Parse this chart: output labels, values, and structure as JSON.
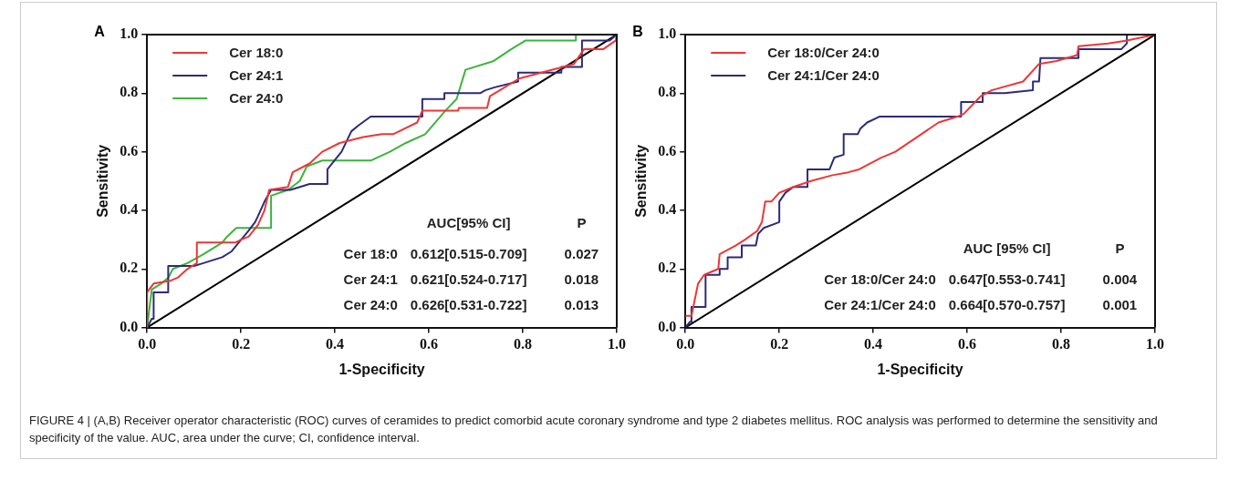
{
  "chart_data": [
    {
      "type": "line",
      "title": "A",
      "xlabel": "1-Specificity",
      "ylabel": "Sensitivity",
      "xlim": [
        0,
        1
      ],
      "ylim": [
        0,
        1
      ],
      "xticks": [
        {
          "value": 0,
          "label": "0.0"
        },
        {
          "value": 0.2,
          "label": "0.2"
        },
        {
          "value": 0.4,
          "label": "0.4"
        },
        {
          "value": 0.6,
          "label": "0.6"
        },
        {
          "value": 0.8,
          "label": "0.8"
        },
        {
          "value": 1,
          "label": "1.0"
        }
      ],
      "yticks": [
        {
          "value": 0,
          "label": "0.0"
        },
        {
          "value": 0.2,
          "label": "0.2"
        },
        {
          "value": 0.4,
          "label": "0.4"
        },
        {
          "value": 0.6,
          "label": "0.6"
        },
        {
          "value": 0.8,
          "label": "0.8"
        },
        {
          "value": 1,
          "label": "1.0"
        }
      ],
      "legend": "top left",
      "grid": false,
      "marker": "none",
      "line_style": "solid",
      "annotations": [
        "AUC[95% CI]",
        "P",
        "Cer 18:0",
        "0.612[0.515-0.709]",
        "0.027",
        "Cer 24:1",
        "0.621[0.524-0.717]",
        "0.018",
        "Cer 24:0",
        "0.626[0.531-0.722]",
        "0.013"
      ],
      "series": [
        {
          "name": "Cer 18:0",
          "color": "#f03535",
          "x": [
            0,
            0,
            0.014,
            0.05,
            0.065,
            0.086,
            0.106,
            0.106,
            0.188,
            0.2,
            0.216,
            0.236,
            0.25,
            0.26,
            0.3,
            0.31,
            0.346,
            0.373,
            0.41,
            0.46,
            0.5,
            0.524,
            0.575,
            0.586,
            0.662,
            0.664,
            0.724,
            0.73,
            0.751,
            0.792,
            0.909,
            0.93,
            0.971,
            0.998,
            1
          ],
          "values": [
            0,
            0.12,
            0.15,
            0.16,
            0.17,
            0.2,
            0.22,
            0.29,
            0.29,
            0.3,
            0.31,
            0.35,
            0.4,
            0.47,
            0.48,
            0.53,
            0.56,
            0.6,
            0.63,
            0.65,
            0.66,
            0.66,
            0.7,
            0.74,
            0.74,
            0.75,
            0.75,
            0.79,
            0.81,
            0.85,
            0.9,
            0.95,
            0.95,
            0.98,
            1
          ]
        },
        {
          "name": "Cer 24:1",
          "color": "#2b2b78",
          "x": [
            0,
            0.01,
            0.014,
            0.014,
            0.045,
            0.045,
            0.1,
            0.12,
            0.16,
            0.18,
            0.195,
            0.216,
            0.23,
            0.236,
            0.25,
            0.264,
            0.305,
            0.346,
            0.384,
            0.384,
            0.414,
            0.435,
            0.45,
            0.476,
            0.586,
            0.586,
            0.633,
            0.633,
            0.709,
            0.72,
            0.74,
            0.79,
            0.79,
            0.882,
            0.882,
            0.926,
            0.926,
            0.985,
            1
          ],
          "values": [
            0,
            0.03,
            0.03,
            0.12,
            0.12,
            0.21,
            0.21,
            0.22,
            0.24,
            0.26,
            0.29,
            0.33,
            0.36,
            0.38,
            0.43,
            0.47,
            0.47,
            0.49,
            0.49,
            0.54,
            0.6,
            0.67,
            0.69,
            0.72,
            0.72,
            0.78,
            0.78,
            0.8,
            0.8,
            0.81,
            0.82,
            0.84,
            0.87,
            0.87,
            0.89,
            0.89,
            0.98,
            0.98,
            1
          ]
        },
        {
          "name": "Cer 24:0",
          "color": "#3cb43c",
          "x": [
            0,
            0.01,
            0.03,
            0.045,
            0.055,
            0.086,
            0.12,
            0.16,
            0.17,
            0.19,
            0.264,
            0.264,
            0.3,
            0.325,
            0.34,
            0.373,
            0.476,
            0.517,
            0.551,
            0.592,
            0.635,
            0.659,
            0.678,
            0.738,
            0.775,
            0.806,
            0.913,
            0.913,
            1
          ],
          "values": [
            0,
            0.13,
            0.15,
            0.17,
            0.2,
            0.22,
            0.25,
            0.29,
            0.31,
            0.34,
            0.34,
            0.45,
            0.47,
            0.5,
            0.55,
            0.57,
            0.57,
            0.6,
            0.63,
            0.66,
            0.74,
            0.78,
            0.88,
            0.91,
            0.95,
            0.98,
            0.98,
            1,
            1
          ]
        },
        {
          "color": "#000000",
          "x": [
            0,
            1
          ],
          "values": [
            0,
            1
          ]
        }
      ]
    },
    {
      "type": "line",
      "title": "B",
      "xlabel": "1-Specificity",
      "ylabel": "Sensitivity",
      "xlim": [
        0,
        1
      ],
      "ylim": [
        0,
        1
      ],
      "xticks": [
        {
          "value": 0,
          "label": "0.0"
        },
        {
          "value": 0.2,
          "label": "0.2"
        },
        {
          "value": 0.4,
          "label": "0.4"
        },
        {
          "value": 0.6,
          "label": "0.6"
        },
        {
          "value": 0.8,
          "label": "0.8"
        },
        {
          "value": 1,
          "label": "1.0"
        }
      ],
      "yticks": [
        {
          "value": 0,
          "label": "0.0"
        },
        {
          "value": 0.2,
          "label": "0.2"
        },
        {
          "value": 0.4,
          "label": "0.4"
        },
        {
          "value": 0.6,
          "label": "0.6"
        },
        {
          "value": 0.8,
          "label": "0.8"
        },
        {
          "value": 1,
          "label": "1.0"
        }
      ],
      "legend": "top left",
      "grid": false,
      "marker": "none",
      "line_style": "solid",
      "annotations": [
        "AUC [95% CI]",
        "P",
        "Cer 18:0/Cer 24:0",
        "0.647[0.553-0.741]",
        "0.004",
        "Cer 24:1/Cer 24:0",
        "0.664[0.570-0.757]",
        "0.001"
      ],
      "series": [
        {
          "name": "Cer 18:0/Cer 24:0",
          "color": "#f03535",
          "x": [
            0,
            0.013,
            0.027,
            0.04,
            0.07,
            0.073,
            0.107,
            0.127,
            0.153,
            0.163,
            0.17,
            0.183,
            0.2,
            0.23,
            0.267,
            0.313,
            0.347,
            0.37,
            0.417,
            0.447,
            0.493,
            0.539,
            0.579,
            0.593,
            0.629,
            0.652,
            0.719,
            0.753,
            0.79,
            0.834,
            0.837,
            0.9,
            0.94,
            1
          ],
          "values": [
            0.04,
            0.04,
            0.15,
            0.18,
            0.2,
            0.25,
            0.28,
            0.3,
            0.33,
            0.36,
            0.43,
            0.43,
            0.46,
            0.48,
            0.5,
            0.52,
            0.53,
            0.54,
            0.58,
            0.6,
            0.65,
            0.7,
            0.72,
            0.73,
            0.79,
            0.81,
            0.84,
            0.9,
            0.91,
            0.93,
            0.96,
            0.97,
            0.98,
            1
          ]
        },
        {
          "name": "Cer 24:1/Cer 24:0",
          "color": "#2b2b78",
          "x": [
            0,
            0.01,
            0.013,
            0.013,
            0.043,
            0.043,
            0.073,
            0.073,
            0.09,
            0.09,
            0.12,
            0.12,
            0.15,
            0.155,
            0.167,
            0.2,
            0.2,
            0.213,
            0.23,
            0.26,
            0.26,
            0.307,
            0.317,
            0.337,
            0.337,
            0.367,
            0.373,
            0.387,
            0.413,
            0.587,
            0.587,
            0.633,
            0.633,
            0.68,
            0.74,
            0.74,
            0.753,
            0.756,
            0.837,
            0.837,
            0.928,
            0.94,
            0.94,
            1
          ],
          "values": [
            0,
            0.02,
            0.02,
            0.07,
            0.07,
            0.18,
            0.18,
            0.2,
            0.2,
            0.24,
            0.24,
            0.28,
            0.28,
            0.32,
            0.34,
            0.36,
            0.43,
            0.46,
            0.48,
            0.48,
            0.54,
            0.54,
            0.58,
            0.59,
            0.66,
            0.66,
            0.68,
            0.7,
            0.72,
            0.72,
            0.77,
            0.77,
            0.8,
            0.8,
            0.81,
            0.84,
            0.84,
            0.92,
            0.92,
            0.95,
            0.95,
            0.97,
            1,
            1
          ]
        },
        {
          "color": "#000000",
          "x": [
            0,
            1
          ],
          "values": [
            0,
            1
          ]
        }
      ]
    },
    {
      "type": "other",
      "annotations": [
        "FIGURE 4 | (A,B) Receiver operator characteristic (ROC) curves of ceramides to predict comorbid acute coronary syndrome and type 2 diabetes mellitus. ROC analysis was performed to determine the sensitivity and specificity of the value. AUC, area under the curve; CI, confidence interval."
      ]
    }
  ]
}
